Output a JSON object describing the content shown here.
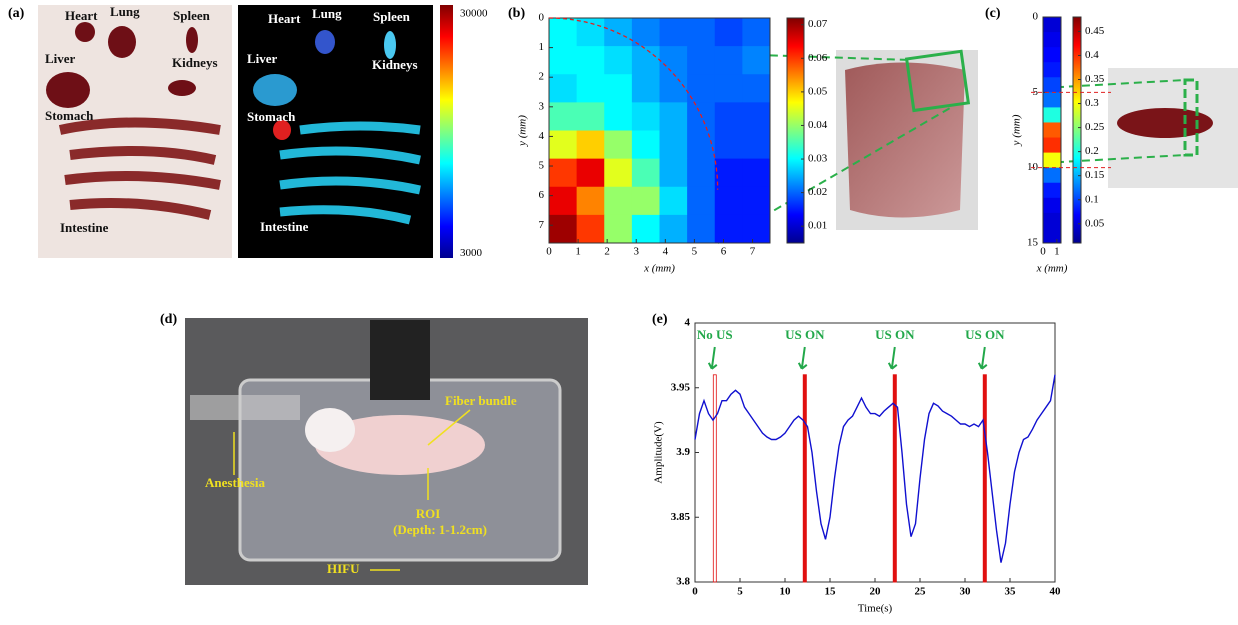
{
  "panels": {
    "a": {
      "label": "(a)",
      "photo_labels": [
        "Heart",
        "Lung",
        "Spleen",
        "Liver",
        "Kidneys",
        "Stomach",
        "Intestine"
      ],
      "fluor_labels": [
        "Heart",
        "Lung",
        "Spleen",
        "Liver",
        "Kidneys",
        "Stomach",
        "Intestine"
      ],
      "colorbar_lim": [
        2500,
        31000
      ],
      "colorbar_ticks": [
        30000,
        3000
      ]
    },
    "b": {
      "label": "(b)"
    },
    "c": {
      "label": "(c)"
    },
    "d": {
      "label": "(d)",
      "annotations": [
        "Fiber bundle",
        "Anesthesia",
        "ROI",
        "(Depth: 1-1.2cm)",
        "HIFU"
      ]
    },
    "e": {
      "label": "(e)"
    }
  },
  "chart_data": [
    {
      "type": "heatmap",
      "xlabel": "x (mm)",
      "ylabel": "y (mm)",
      "xlim": [
        0,
        7.6
      ],
      "ylim": [
        0,
        7.6
      ],
      "xticks": [
        0,
        1,
        2,
        3,
        4,
        5,
        6,
        7
      ],
      "yticks": [
        0,
        1,
        2,
        3,
        4,
        5,
        6,
        7
      ],
      "z": [
        [
          0.03,
          0.028,
          0.025,
          0.022,
          0.02,
          0.02,
          0.018,
          0.02
        ],
        [
          0.03,
          0.03,
          0.028,
          0.025,
          0.022,
          0.02,
          0.02,
          0.022
        ],
        [
          0.028,
          0.03,
          0.03,
          0.025,
          0.022,
          0.02,
          0.02,
          0.02
        ],
        [
          0.035,
          0.035,
          0.03,
          0.028,
          0.025,
          0.02,
          0.018,
          0.018
        ],
        [
          0.045,
          0.05,
          0.04,
          0.03,
          0.025,
          0.02,
          0.018,
          0.018
        ],
        [
          0.06,
          0.065,
          0.045,
          0.035,
          0.025,
          0.02,
          0.015,
          0.015
        ],
        [
          0.065,
          0.055,
          0.04,
          0.04,
          0.028,
          0.02,
          0.015,
          0.015
        ],
        [
          0.07,
          0.06,
          0.04,
          0.03,
          0.025,
          0.02,
          0.015,
          0.015
        ]
      ],
      "clim": [
        0.005,
        0.072
      ],
      "cticks": [
        0.01,
        0.02,
        0.03,
        0.04,
        0.05,
        0.06,
        0.07
      ],
      "arc_radius": 5.8
    },
    {
      "type": "heatmap",
      "xlabel": "x (mm)",
      "ylabel": "y (mm)",
      "xlim": [
        0,
        1.3
      ],
      "ylim": [
        0,
        15
      ],
      "xticks": [
        0,
        1
      ],
      "yticks": [
        0,
        5,
        10,
        15
      ],
      "z": [
        [
          0.05
        ],
        [
          0.06
        ],
        [
          0.07
        ],
        [
          0.08
        ],
        [
          0.1
        ],
        [
          0.12
        ],
        [
          0.2
        ],
        [
          0.38
        ],
        [
          0.4
        ],
        [
          0.3
        ],
        [
          0.12
        ],
        [
          0.08
        ],
        [
          0.06
        ],
        [
          0.05
        ],
        [
          0.05
        ]
      ],
      "clim": [
        0.01,
        0.48
      ],
      "cticks": [
        0.05,
        0.1,
        0.15,
        0.2,
        0.25,
        0.3,
        0.35,
        0.4,
        0.45
      ],
      "guide_lines": [
        5,
        10
      ]
    },
    {
      "type": "line",
      "xlabel": "Time(s)",
      "ylabel": "Amplitude(V)",
      "color": "#1010d0",
      "xlim": [
        0,
        40
      ],
      "ylim": [
        3.8,
        4
      ],
      "xticks": [
        0,
        5,
        10,
        15,
        20,
        25,
        30,
        35,
        40
      ],
      "yticks": [
        3.8,
        3.85,
        3.9,
        3.95,
        4
      ],
      "x": [
        0,
        0.5,
        1,
        1.5,
        2,
        2.5,
        3,
        3.5,
        4,
        4.5,
        5,
        5.5,
        6,
        6.5,
        7,
        7.5,
        8,
        8.5,
        9,
        9.5,
        10,
        10.5,
        11,
        11.5,
        12,
        12.5,
        13,
        13.5,
        14,
        14.5,
        15,
        15.5,
        16,
        16.5,
        17,
        17.5,
        18,
        18.5,
        19,
        19.5,
        20,
        20.5,
        21,
        21.5,
        22,
        22.5,
        23,
        23.5,
        24,
        24.5,
        25,
        25.5,
        26,
        26.5,
        27,
        27.5,
        28,
        28.5,
        29,
        29.5,
        30,
        30.5,
        31,
        31.5,
        32,
        32.5,
        33,
        33.5,
        34,
        34.5,
        35,
        35.5,
        36,
        36.5,
        37,
        37.5,
        38,
        38.5,
        39,
        39.5,
        40
      ],
      "values": [
        3.91,
        3.93,
        3.94,
        3.93,
        3.925,
        3.93,
        3.94,
        3.94,
        3.945,
        3.948,
        3.945,
        3.935,
        3.93,
        3.925,
        3.92,
        3.915,
        3.912,
        3.91,
        3.91,
        3.912,
        3.915,
        3.92,
        3.925,
        3.928,
        3.925,
        3.92,
        3.9,
        3.87,
        3.845,
        3.833,
        3.85,
        3.88,
        3.905,
        3.92,
        3.925,
        3.928,
        3.935,
        3.942,
        3.935,
        3.93,
        3.93,
        3.928,
        3.932,
        3.935,
        3.938,
        3.935,
        3.9,
        3.86,
        3.835,
        3.845,
        3.88,
        3.91,
        3.93,
        3.938,
        3.936,
        3.932,
        3.93,
        3.928,
        3.925,
        3.922,
        3.922,
        3.92,
        3.922,
        3.92,
        3.925,
        3.9,
        3.87,
        3.84,
        3.815,
        3.83,
        3.86,
        3.885,
        3.9,
        3.91,
        3.912,
        3.918,
        3.925,
        3.93,
        3.935,
        3.94,
        3.96
      ],
      "marker_top": 3.96,
      "marker_color": "#e01010",
      "label_color": "#22a84a",
      "markers": [
        {
          "x": 2.2,
          "label": "No US",
          "style": "outline"
        },
        {
          "x": 12.2,
          "label": "US ON",
          "style": "solid"
        },
        {
          "x": 22.2,
          "label": "US ON",
          "style": "solid"
        },
        {
          "x": 32.2,
          "label": "US ON",
          "style": "solid"
        }
      ]
    }
  ]
}
